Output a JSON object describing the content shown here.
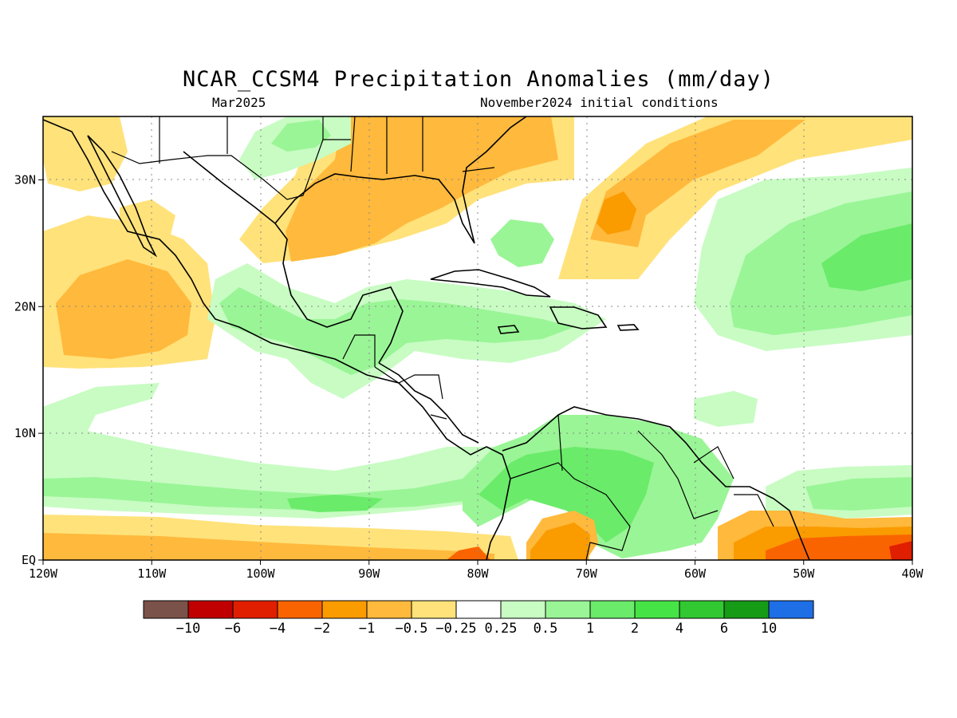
{
  "title": "NCAR_CCSM4 Precipitation Anomalies (mm/day)",
  "subtitle_left": "Mar2025",
  "subtitle_right": "November2024 initial conditions",
  "map": {
    "lon_range": [
      -120,
      -40
    ],
    "lat_range": [
      0,
      35
    ],
    "lon_ticks": [
      {
        "v": -120,
        "label": "120W"
      },
      {
        "v": -110,
        "label": "110W"
      },
      {
        "v": -100,
        "label": "100W"
      },
      {
        "v": -90,
        "label": "90W"
      },
      {
        "v": -80,
        "label": "80W"
      },
      {
        "v": -70,
        "label": "70W"
      },
      {
        "v": -60,
        "label": "60W"
      },
      {
        "v": -50,
        "label": "50W"
      },
      {
        "v": -40,
        "label": "40W"
      }
    ],
    "lat_ticks": [
      {
        "v": 0,
        "label": "EQ"
      },
      {
        "v": 10,
        "label": "10N"
      },
      {
        "v": 20,
        "label": "20N"
      },
      {
        "v": 30,
        "label": "30N"
      }
    ],
    "grid": true
  },
  "colorbar": {
    "colors": [
      "#7b5249",
      "#c00000",
      "#e01e00",
      "#fa6400",
      "#fa9b00",
      "#ffb93c",
      "#ffe27a",
      "#ffffff",
      "#c8fcc3",
      "#9af596",
      "#6aeb6a",
      "#46e346",
      "#32c832",
      "#169b16",
      "#1e6ee6"
    ],
    "labels": [
      "-10",
      "-6",
      "-4",
      "-2",
      "-1",
      "-0.5",
      "-0.25",
      "0.25",
      "0.5",
      "1",
      "2",
      "4",
      "6",
      "10"
    ]
  }
}
